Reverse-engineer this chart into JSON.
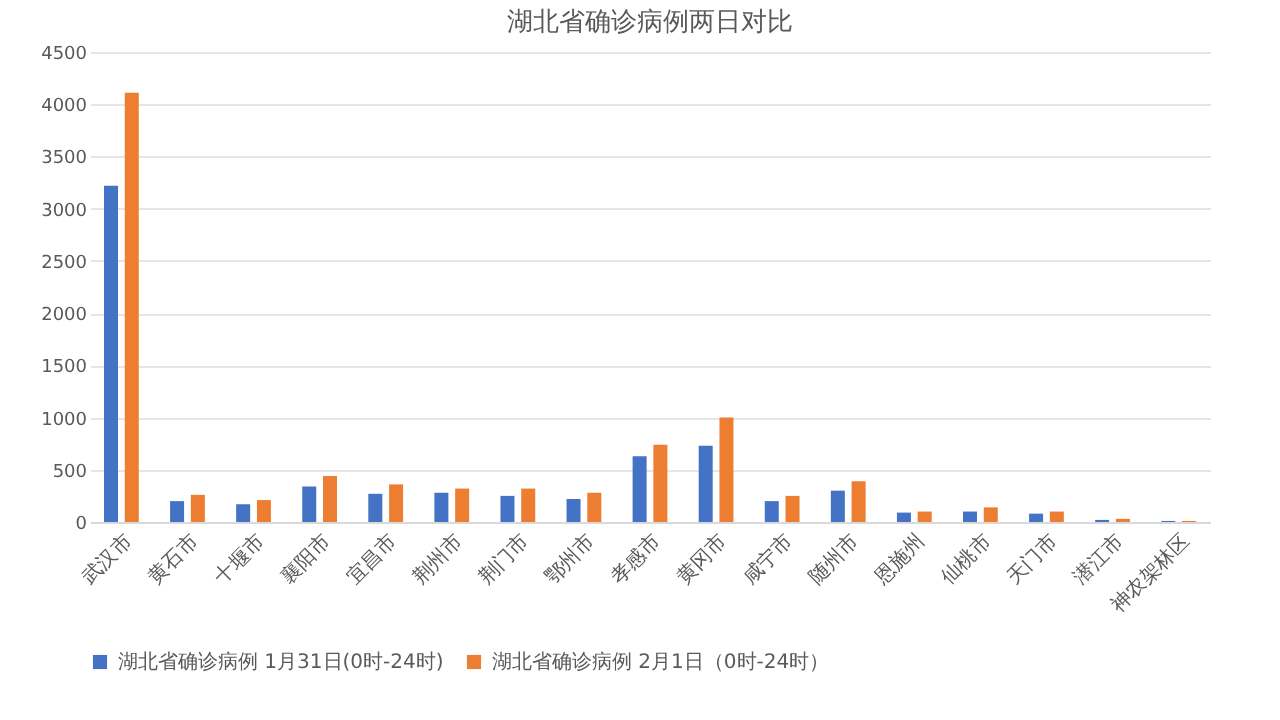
{
  "chart_data": {
    "type": "bar",
    "title": "湖北省确诊病例两日对比",
    "categories": [
      "武汉市",
      "黄石市",
      "十堰市",
      "襄阳市",
      "宜昌市",
      "荆州市",
      "荆门市",
      "鄂州市",
      "孝感市",
      "黄冈市",
      "咸宁市",
      "随州市",
      "恩施州",
      "仙桃市",
      "天门市",
      "潜江市",
      "神农架林区"
    ],
    "series": [
      {
        "name": "湖北省确诊病例 1月31日(0时-24时)",
        "color": "#4472c4",
        "values": [
          3220,
          200,
          170,
          340,
          270,
          280,
          250,
          220,
          630,
          730,
          200,
          300,
          90,
          100,
          80,
          20,
          10
        ]
      },
      {
        "name": "湖北省确诊病例 2月1日（0时-24时）",
        "color": "#ed7d31",
        "values": [
          4110,
          260,
          210,
          440,
          360,
          320,
          320,
          280,
          740,
          1000,
          250,
          390,
          100,
          140,
          100,
          30,
          10
        ]
      }
    ],
    "ylim": [
      0,
      4500
    ],
    "yticks": [
      0,
      500,
      1000,
      1500,
      2000,
      2500,
      3000,
      3500,
      4000,
      4500
    ],
    "grid": "y",
    "legend": "bottom"
  }
}
